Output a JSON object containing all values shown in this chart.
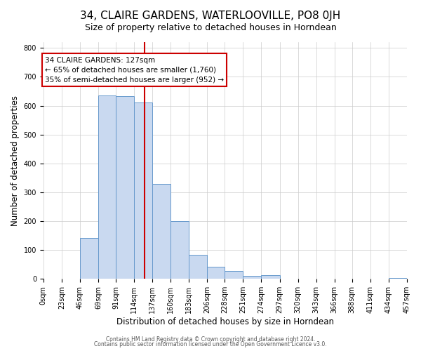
{
  "title": "34, CLAIRE GARDENS, WATERLOOVILLE, PO8 0JH",
  "subtitle": "Size of property relative to detached houses in Horndean",
  "xlabel": "Distribution of detached houses by size in Horndean",
  "ylabel": "Number of detached properties",
  "bin_edges": [
    0,
    23,
    46,
    69,
    91,
    114,
    137,
    160,
    183,
    206,
    228,
    251,
    274,
    297,
    320,
    343,
    366,
    388,
    411,
    434,
    457
  ],
  "bin_labels": [
    "0sqm",
    "23sqm",
    "46sqm",
    "69sqm",
    "91sqm",
    "114sqm",
    "137sqm",
    "160sqm",
    "183sqm",
    "206sqm",
    "228sqm",
    "251sqm",
    "274sqm",
    "297sqm",
    "320sqm",
    "343sqm",
    "366sqm",
    "388sqm",
    "411sqm",
    "434sqm",
    "457sqm"
  ],
  "counts": [
    2,
    0,
    143,
    635,
    632,
    610,
    330,
    200,
    83,
    43,
    27,
    10,
    12,
    0,
    0,
    0,
    0,
    0,
    0,
    3
  ],
  "bar_color": "#c9d9f0",
  "bar_edge_color": "#6699cc",
  "vline_x": 127,
  "vline_color": "#cc0000",
  "annotation_line1": "34 CLAIRE GARDENS: 127sqm",
  "annotation_line2": "← 65% of detached houses are smaller (1,760)",
  "annotation_line3": "35% of semi-detached houses are larger (952) →",
  "annotation_box_color": "#cc0000",
  "annotation_box_fill": "#ffffff",
  "ylim": [
    0,
    820
  ],
  "yticks": [
    0,
    100,
    200,
    300,
    400,
    500,
    600,
    700,
    800
  ],
  "background_color": "#ffffff",
  "grid_color": "#cccccc",
  "footer_line1": "Contains HM Land Registry data © Crown copyright and database right 2024.",
  "footer_line2": "Contains public sector information licensed under the Open Government Licence v3.0.",
  "title_fontsize": 11,
  "subtitle_fontsize": 9,
  "axis_label_fontsize": 8.5,
  "tick_fontsize": 7,
  "annotation_fontsize": 7.5,
  "footer_fontsize": 5.5
}
